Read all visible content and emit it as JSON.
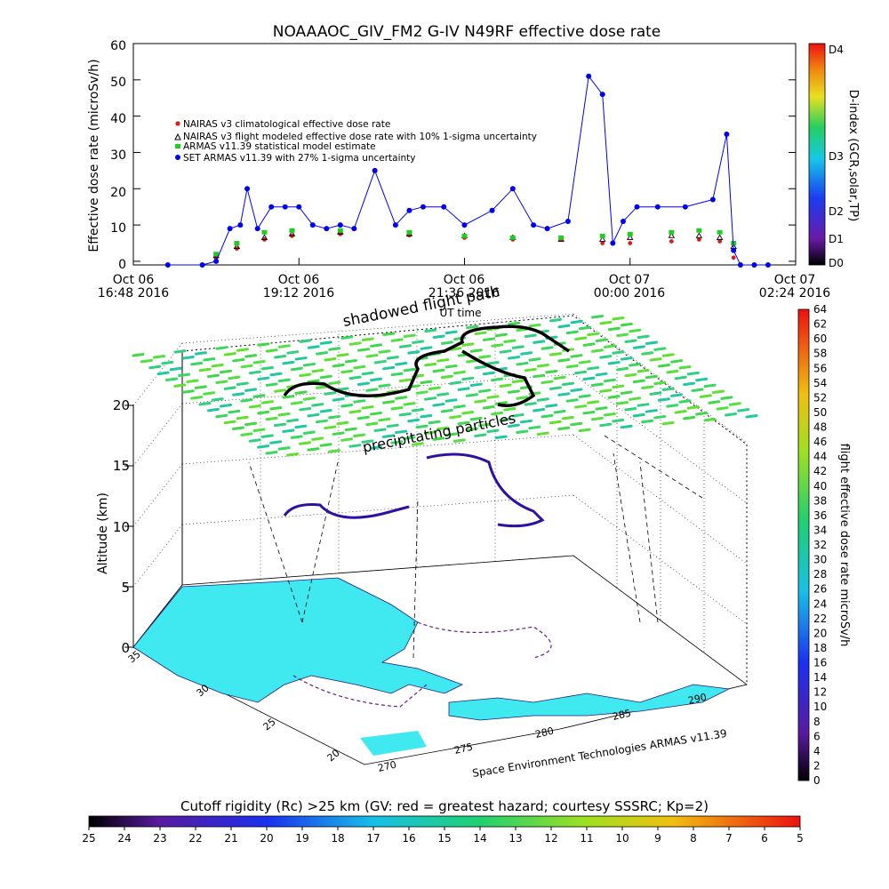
{
  "title": "NOAAAOC_GIV_FM2 G-IV    N49RF  effective dose rate",
  "top_chart": {
    "ylabel": "Effective dose rate (microSv/h)",
    "xlabel": "UT time",
    "y_ticks": [
      "0",
      "10",
      "20",
      "30",
      "40",
      "50",
      "60"
    ],
    "x_tick_dates": [
      "Oct 06",
      "Oct 06",
      "Oct 06",
      "Oct 07",
      "Oct 07"
    ],
    "x_tick_times": [
      "16:48 2016",
      "19:12 2016",
      "21:36 2016",
      "00:00 2016",
      "02:24 2016"
    ],
    "legend": [
      "NAIRAS v3 climatological effective dose rate",
      "NAIRAS v3 flight modeled effective dose rate with 10% 1-sigma uncertainty",
      "ARMAS v11.39 statistical model estimate",
      "SET ARMAS v11.39 with 27% 1-sigma uncertainty"
    ],
    "d_index_label": "D-index (GCR,solar,TP)",
    "d_index_ticks": [
      "D4",
      "D3",
      "D2",
      "D1",
      "D0"
    ],
    "colors": {
      "nairas_clim": "#d02020",
      "nairas_flight": "#000000",
      "armas_model": "#22cc22",
      "set_armas": "#0000ee"
    }
  },
  "chart_data": [
    {
      "type": "scatter",
      "title": "NOAAAOC_GIV_FM2 G-IV    N49RF  effective dose rate",
      "xlabel": "UT time",
      "ylabel": "Effective dose rate (microSv/h)",
      "x_unit": "hours UT from Oct 06 16:48",
      "xlim": [
        0,
        9.6
      ],
      "ylim": [
        -1,
        60
      ],
      "series": [
        {
          "name": "NAIRAS v3 climatological effective dose rate",
          "x": [
            1.2,
            1.5,
            1.9,
            2.3,
            3.0,
            4.0,
            4.8,
            5.5,
            6.2,
            6.8,
            7.2,
            7.8,
            8.2,
            8.5,
            8.7
          ],
          "y": [
            1,
            3.5,
            6,
            7,
            7.5,
            7.2,
            6.5,
            6,
            6,
            5,
            5,
            5.5,
            6,
            5.5,
            1
          ]
        },
        {
          "name": "NAIRAS v3 flight modeled effective dose rate with 10% 1-sigma uncertainty",
          "x": [
            1.2,
            1.5,
            1.9,
            2.3,
            3.0,
            4.0,
            4.8,
            5.5,
            6.2,
            6.8,
            7.2,
            7.8,
            8.2,
            8.5,
            8.7
          ],
          "y": [
            1.5,
            4,
            6.5,
            7.5,
            8,
            7.5,
            7,
            6.5,
            6,
            6,
            6.5,
            7,
            7,
            6.5,
            4
          ]
        },
        {
          "name": "ARMAS v11.39 statistical model estimate",
          "x": [
            1.2,
            1.5,
            1.9,
            2.3,
            3.0,
            4.0,
            4.8,
            5.5,
            6.2,
            6.8,
            7.2,
            7.8,
            8.2,
            8.5,
            8.7
          ],
          "y": [
            2,
            5,
            8,
            8.5,
            8.5,
            8,
            7,
            6.5,
            6.5,
            7,
            7.5,
            8,
            8.5,
            8,
            5
          ]
        },
        {
          "name": "SET ARMAS v11.39 with 27% 1-sigma uncertainty",
          "x": [
            0.5,
            1.0,
            1.2,
            1.4,
            1.55,
            1.65,
            1.8,
            2.0,
            2.2,
            2.4,
            2.6,
            2.8,
            3.0,
            3.2,
            3.5,
            3.8,
            4.0,
            4.2,
            4.5,
            4.8,
            5.2,
            5.5,
            5.8,
            6.0,
            6.3,
            6.6,
            6.8,
            6.95,
            7.1,
            7.3,
            7.6,
            8.0,
            8.4,
            8.6,
            8.7,
            8.8,
            9.0,
            9.2
          ],
          "y": [
            -1,
            -1,
            0,
            9,
            10,
            20,
            9,
            15,
            15,
            15,
            10,
            9,
            10,
            9,
            25,
            10,
            14,
            15,
            15,
            10,
            14,
            20,
            10,
            9,
            11,
            51,
            46,
            5,
            11,
            15,
            15,
            15,
            17,
            35,
            3,
            -1,
            -1,
            -1
          ]
        }
      ],
      "d_index_ticks": [
        "D0",
        "D1",
        "D2",
        "D3",
        "D4"
      ]
    },
    {
      "type": "scatter",
      "title": "shadowed flight path",
      "zlabel": "Altitude (km)",
      "zlim": [
        0,
        20
      ],
      "z_ticks": [
        0,
        5,
        10,
        15,
        20
      ],
      "lat_ticks": [
        20,
        25,
        30,
        35
      ],
      "lon_ticks": [
        270,
        275,
        280,
        285,
        290
      ],
      "annotations": [
        "precipitating particles",
        "shadowed flight path"
      ],
      "colorbar_label": "flight effective dose rate microSv/h",
      "colorbar_range": [
        0,
        64
      ]
    }
  ],
  "map_panel": {
    "title_overlay": "shadowed flight path",
    "annotation": "precipitating particles",
    "zlabel": "Altitude (km)",
    "z_ticks": [
      "0",
      "5",
      "10",
      "15",
      "20"
    ],
    "lat_ticks": [
      "35",
      "30",
      "25",
      "20"
    ],
    "lon_ticks": [
      "270",
      "275",
      "280",
      "285",
      "290"
    ],
    "credit": "Space Environment Technologies ARMAS v11.39",
    "right_colorbar_label": "flight effective dose rate microSv/h",
    "right_colorbar_ticks": [
      "64",
      "62",
      "60",
      "58",
      "56",
      "54",
      "52",
      "50",
      "48",
      "46",
      "44",
      "42",
      "40",
      "38",
      "36",
      "34",
      "32",
      "30",
      "28",
      "26",
      "24",
      "22",
      "20",
      "18",
      "16",
      "14",
      "12",
      "10",
      "8",
      "6",
      "4",
      "2",
      "0"
    ]
  },
  "bottom_colorbar": {
    "title": "Cutoff rigidity (Rc) >25 km (GV: red = greatest hazard; courtesy SSSRC; Kp=2)",
    "ticks": [
      "25",
      "24",
      "23",
      "22",
      "21",
      "20",
      "19",
      "18",
      "17",
      "16",
      "15",
      "14",
      "13",
      "12",
      "11",
      "10",
      "9",
      "8",
      "7",
      "6",
      "5"
    ]
  }
}
